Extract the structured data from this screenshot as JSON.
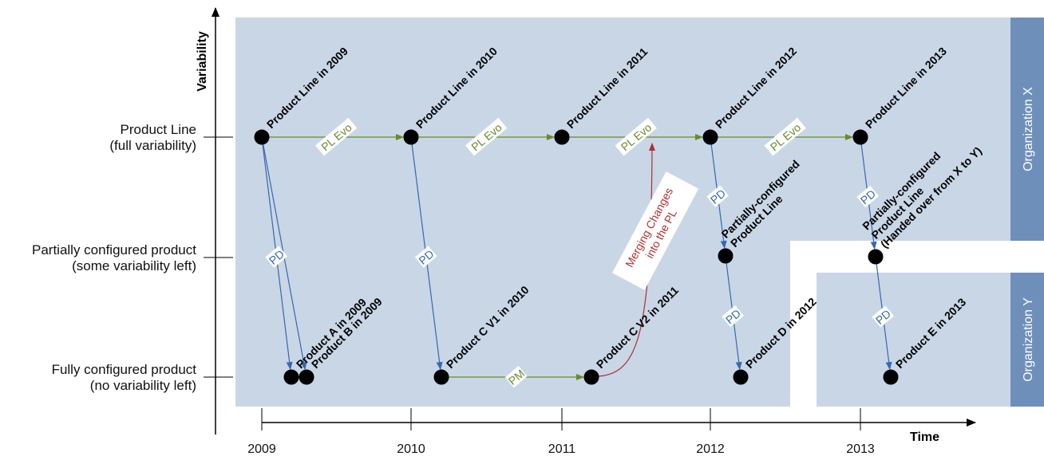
{
  "axes": {
    "y_title": "Variability",
    "x_title": "Time",
    "levels": [
      {
        "line1": "Product Line",
        "line2": "(full variability)"
      },
      {
        "line1": "Partially configured product",
        "line2": "(some variability left)"
      },
      {
        "line1": "Fully configured product",
        "line2": "(no variability left)"
      }
    ],
    "years": [
      "2009",
      "2010",
      "2011",
      "2012",
      "2013"
    ]
  },
  "organizations": {
    "x": "Organization X",
    "y": "Organization Y"
  },
  "nodes": [
    {
      "id": "pl2009",
      "label": [
        "Product Line in 2009"
      ]
    },
    {
      "id": "pl2010",
      "label": [
        "Product Line in 2010"
      ]
    },
    {
      "id": "pl2011",
      "label": [
        "Product Line in 2011"
      ]
    },
    {
      "id": "pl2012",
      "label": [
        "Product Line in 2012"
      ]
    },
    {
      "id": "pl2013",
      "label": [
        "Product Line in 2013"
      ]
    },
    {
      "id": "pcpl2012",
      "label": [
        "Partially-configured",
        "Product Line"
      ]
    },
    {
      "id": "pcpl2013",
      "label": [
        "Partially-configured",
        "Product Line",
        "(Handed over from X to Y)"
      ]
    },
    {
      "id": "pa2009",
      "label": [
        "Product A in 2009"
      ]
    },
    {
      "id": "pb2009",
      "label": [
        "Product B in 2009"
      ]
    },
    {
      "id": "pcv1",
      "label": [
        "Product C V1 in 2010"
      ]
    },
    {
      "id": "pcv2",
      "label": [
        "Product C V2 in 2011"
      ]
    },
    {
      "id": "pd2012",
      "label": [
        "Product D in 2012"
      ]
    },
    {
      "id": "pe2013",
      "label": [
        "Product E in 2013"
      ]
    }
  ],
  "edges": [
    {
      "from": "pl2009",
      "to": "pl2010",
      "kind": "evo",
      "label": "PL Evo"
    },
    {
      "from": "pl2010",
      "to": "pl2011",
      "kind": "evo",
      "label": "PL Evo"
    },
    {
      "from": "pl2011",
      "to": "pl2012",
      "kind": "evo",
      "label": "PL Evo"
    },
    {
      "from": "pl2012",
      "to": "pl2013",
      "kind": "evo",
      "label": "PL Evo"
    },
    {
      "from": "pl2009",
      "to": "pa2009",
      "kind": "pd",
      "label": "PD"
    },
    {
      "from": "pl2009",
      "to": "pb2009",
      "kind": "pd",
      "label": ""
    },
    {
      "from": "pl2010",
      "to": "pcv1",
      "kind": "pd",
      "label": "PD"
    },
    {
      "from": "pl2012",
      "to": "pcpl2012",
      "kind": "pd",
      "label": "PD"
    },
    {
      "from": "pcpl2012",
      "to": "pd2012",
      "kind": "pd",
      "label": "PD"
    },
    {
      "from": "pl2013",
      "to": "pcpl2013",
      "kind": "pd",
      "label": "PD"
    },
    {
      "from": "pcpl2013",
      "to": "pe2013",
      "kind": "pd",
      "label": "PD"
    },
    {
      "from": "pcv1",
      "to": "pcv2",
      "kind": "evo",
      "label": "PM"
    }
  ],
  "merge": {
    "from": "pcv2",
    "to": "pl2011",
    "label": [
      "Merging Changes",
      "into the PL"
    ]
  },
  "colors": {
    "panel": "#c9d6e6",
    "org_bar": "#6f8fbb",
    "evo": "#6a8a2c",
    "pd": "#3468b0",
    "merge": "#a83232",
    "node": "#000000"
  }
}
